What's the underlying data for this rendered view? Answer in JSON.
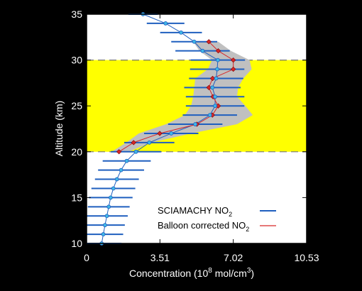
{
  "chart_data": {
    "type": "line",
    "xlabel": "Concentration (10",
    "xlabel_sup": "8",
    "xlabel_tail": " mol/cm",
    "xlabel_sup2": "3",
    "xlabel_end": ")",
    "ylabel": "Altitude (km)",
    "xlim": [
      0,
      10.53
    ],
    "ylim": [
      10,
      35
    ],
    "x_ticks": [
      0,
      3.51,
      7.02,
      10.53
    ],
    "x_tick_labels": [
      "0",
      "3.51",
      "7.02",
      "10.53"
    ],
    "y_ticks": [
      10,
      15,
      20,
      25,
      30,
      35
    ],
    "y_tick_labels": [
      "10",
      "15",
      "20",
      "25",
      "30",
      "35"
    ],
    "highlight_band": {
      "from": 20,
      "to": 30,
      "color": "#ffff00"
    },
    "dashed_lines": [
      20,
      30
    ],
    "series": [
      {
        "name": "SCIAMACHY NO",
        "name_sub": "2",
        "color": "#1f5fbf",
        "altitude": [
          10,
          11,
          12,
          13,
          14,
          15,
          16,
          17,
          18,
          19,
          20,
          21,
          22,
          23,
          24,
          25,
          26,
          27,
          28,
          29,
          30,
          31,
          32,
          33,
          34,
          35
        ],
        "concentration": [
          0.72,
          0.8,
          0.88,
          0.97,
          1.06,
          1.15,
          1.28,
          1.45,
          1.65,
          1.92,
          2.36,
          3.0,
          4.05,
          5.2,
          5.9,
          6.15,
          6.15,
          6.02,
          6.2,
          6.25,
          6.28,
          5.55,
          5.15,
          4.52,
          3.78,
          2.7
        ],
        "error": [
          0.95,
          0.95,
          0.95,
          1.0,
          1.0,
          1.05,
          1.05,
          1.05,
          1.1,
          1.15,
          1.2,
          1.2,
          1.3,
          1.3,
          1.3,
          1.4,
          1.4,
          1.35,
          1.3,
          1.3,
          1.3,
          1.3,
          1.1,
          1.0,
          0.9,
          0.7
        ]
      },
      {
        "name": "Balloon corrected NO",
        "name_sub": "2",
        "color": "#d62728",
        "altitude": [
          20,
          21,
          22,
          23,
          24,
          25,
          26,
          27,
          28,
          29,
          30,
          31,
          32
        ],
        "concentration": [
          1.55,
          2.25,
          3.5,
          5.28,
          6.02,
          6.3,
          6.05,
          5.85,
          6.03,
          7.02,
          7.02,
          6.3,
          5.85
        ],
        "uncertainty_low": [
          1.2,
          1.9,
          2.5,
          3.8,
          4.7,
          5.0,
          5.1,
          5.15,
          5.2,
          5.8,
          6.0,
          5.4,
          5.1
        ],
        "uncertainty_high": [
          2.0,
          3.1,
          5.0,
          7.2,
          7.95,
          7.6,
          7.2,
          7.25,
          7.5,
          7.9,
          7.8,
          6.9,
          6.3
        ]
      }
    ],
    "legend_position": "bottom-right"
  }
}
